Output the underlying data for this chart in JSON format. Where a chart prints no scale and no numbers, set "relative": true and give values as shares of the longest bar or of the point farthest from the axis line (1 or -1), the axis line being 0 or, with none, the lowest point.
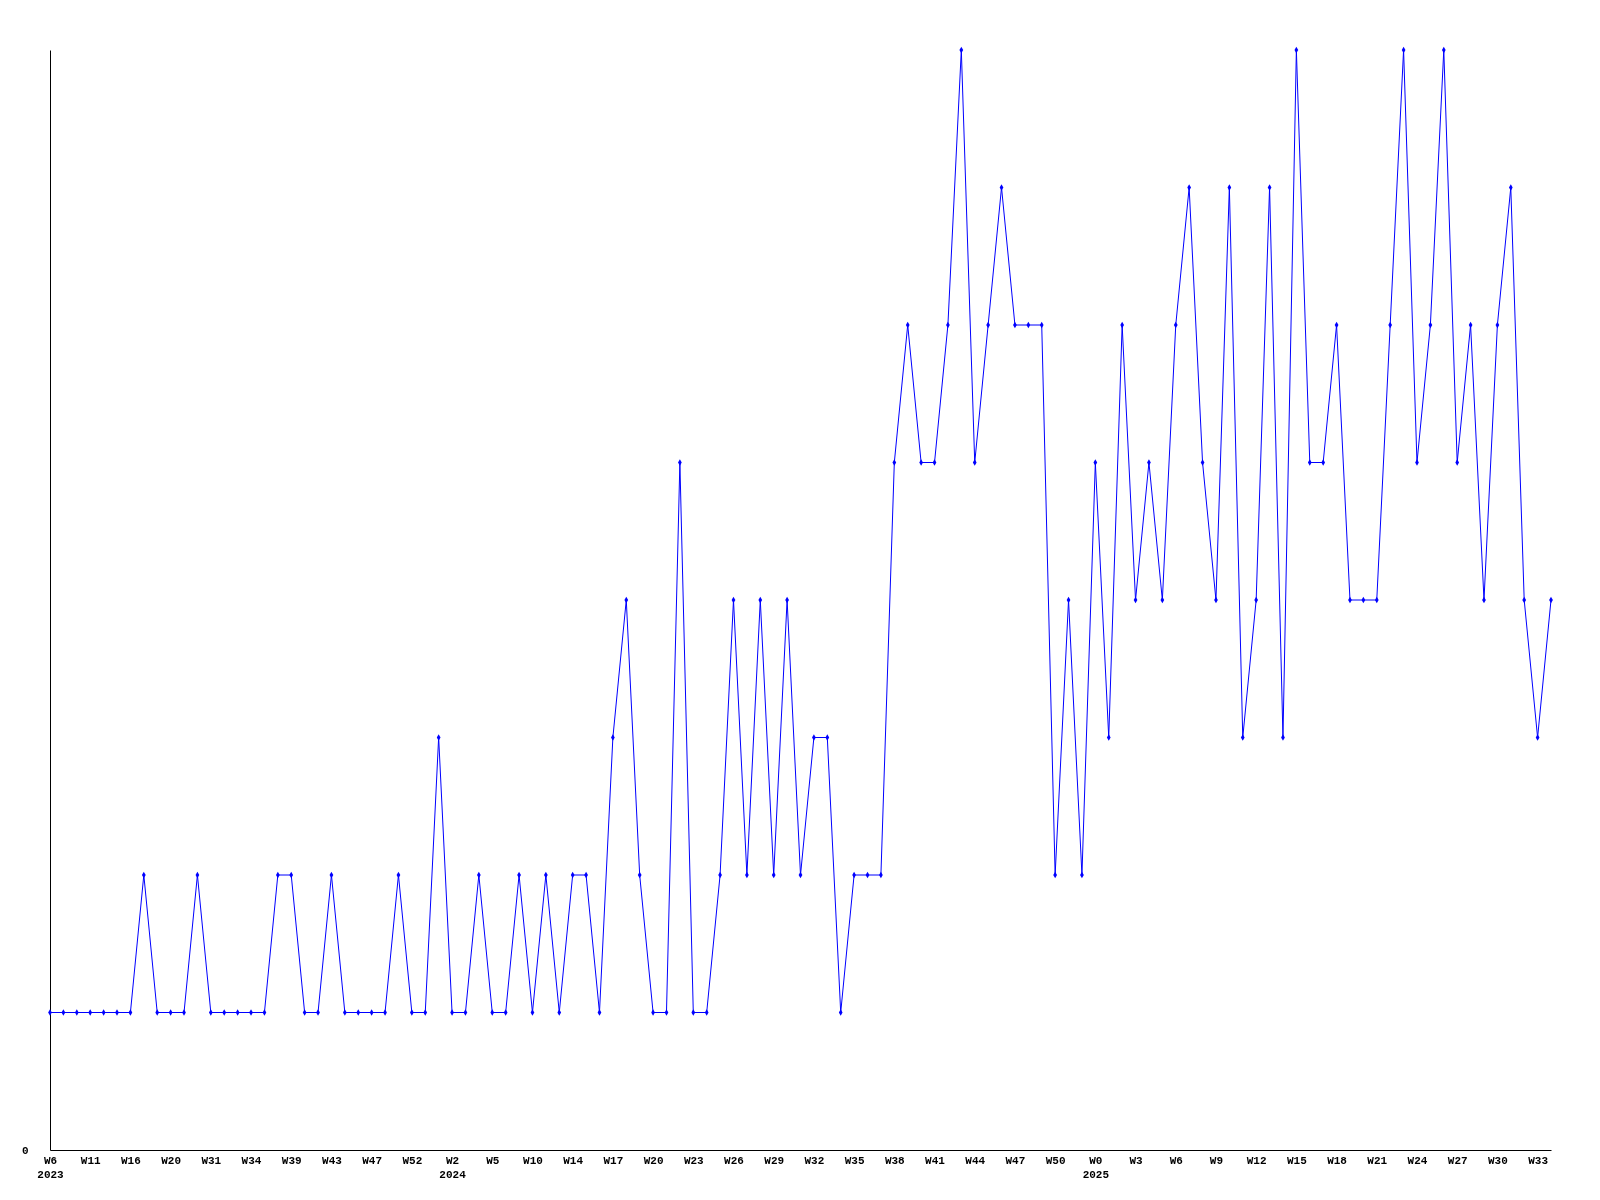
{
  "chart_data": {
    "type": "line",
    "relative": true,
    "marker": "diamond",
    "line_style": "solid",
    "categories": [
      "W6\n2023",
      null,
      null,
      "W11",
      null,
      null,
      "W16",
      null,
      null,
      "W20",
      null,
      null,
      "W31",
      null,
      null,
      "W34",
      null,
      null,
      "W39",
      null,
      null,
      "W43",
      null,
      null,
      "W47",
      null,
      null,
      "W52",
      null,
      null,
      "W2\n2024",
      null,
      null,
      "W5",
      null,
      null,
      "W10",
      null,
      null,
      "W14",
      null,
      null,
      "W17",
      null,
      null,
      "W20",
      null,
      null,
      "W23",
      null,
      null,
      "W26",
      null,
      null,
      "W29",
      null,
      null,
      "W32",
      null,
      null,
      "W35",
      null,
      null,
      "W38",
      null,
      null,
      "W41",
      null,
      null,
      "W44",
      null,
      null,
      "W47",
      null,
      null,
      "W50",
      null,
      null,
      "W0\n2025",
      null,
      null,
      "W3",
      null,
      null,
      "W6",
      null,
      null,
      "W9",
      null,
      null,
      "W12",
      null,
      null,
      "W15",
      null,
      null,
      "W18",
      null,
      null,
      "W21",
      null,
      null,
      "W24",
      null,
      null,
      "W27",
      null,
      null,
      "W30",
      null,
      null,
      "W33",
      null
    ],
    "series": [
      {
        "color": "#0000ff",
        "values": [
          0.125,
          0.125,
          0.125,
          0.125,
          0.125,
          0.125,
          0.125,
          0.25,
          0.125,
          0.125,
          0.125,
          0.25,
          0.125,
          0.125,
          0.125,
          0.125,
          0.125,
          0.25,
          0.25,
          0.125,
          0.125,
          0.25,
          0.125,
          0.125,
          0.125,
          0.125,
          0.25,
          0.125,
          0.125,
          0.375,
          0.125,
          0.125,
          0.25,
          0.125,
          0.125,
          0.25,
          0.125,
          0.25,
          0.125,
          0.25,
          0.25,
          0.125,
          0.375,
          0.5,
          0.25,
          0.125,
          0.125,
          0.625,
          0.125,
          0.125,
          0.25,
          0.5,
          0.25,
          0.5,
          0.25,
          0.5,
          0.25,
          0.375,
          0.375,
          0.125,
          0.25,
          0.25,
          0.25,
          0.625,
          0.75,
          0.625,
          0.625,
          0.75,
          1,
          0.625,
          0.75,
          0.875,
          0.75,
          0.75,
          0.75,
          0.25,
          0.5,
          0.25,
          0.625,
          0.375,
          0.75,
          0.5,
          0.625,
          0.5,
          0.75,
          0.875,
          0.625,
          0.5,
          0.875,
          0.375,
          0.5,
          0.875,
          0.375,
          1,
          0.625,
          0.625,
          0.75,
          0.5,
          0.5,
          0.5,
          0.75,
          1,
          0.625,
          0.75,
          1,
          0.625,
          0.75,
          0.5,
          0.75,
          0.875,
          0.5,
          0.375,
          0.5
        ]
      }
    ],
    "annotations": [
      "0"
    ]
  }
}
